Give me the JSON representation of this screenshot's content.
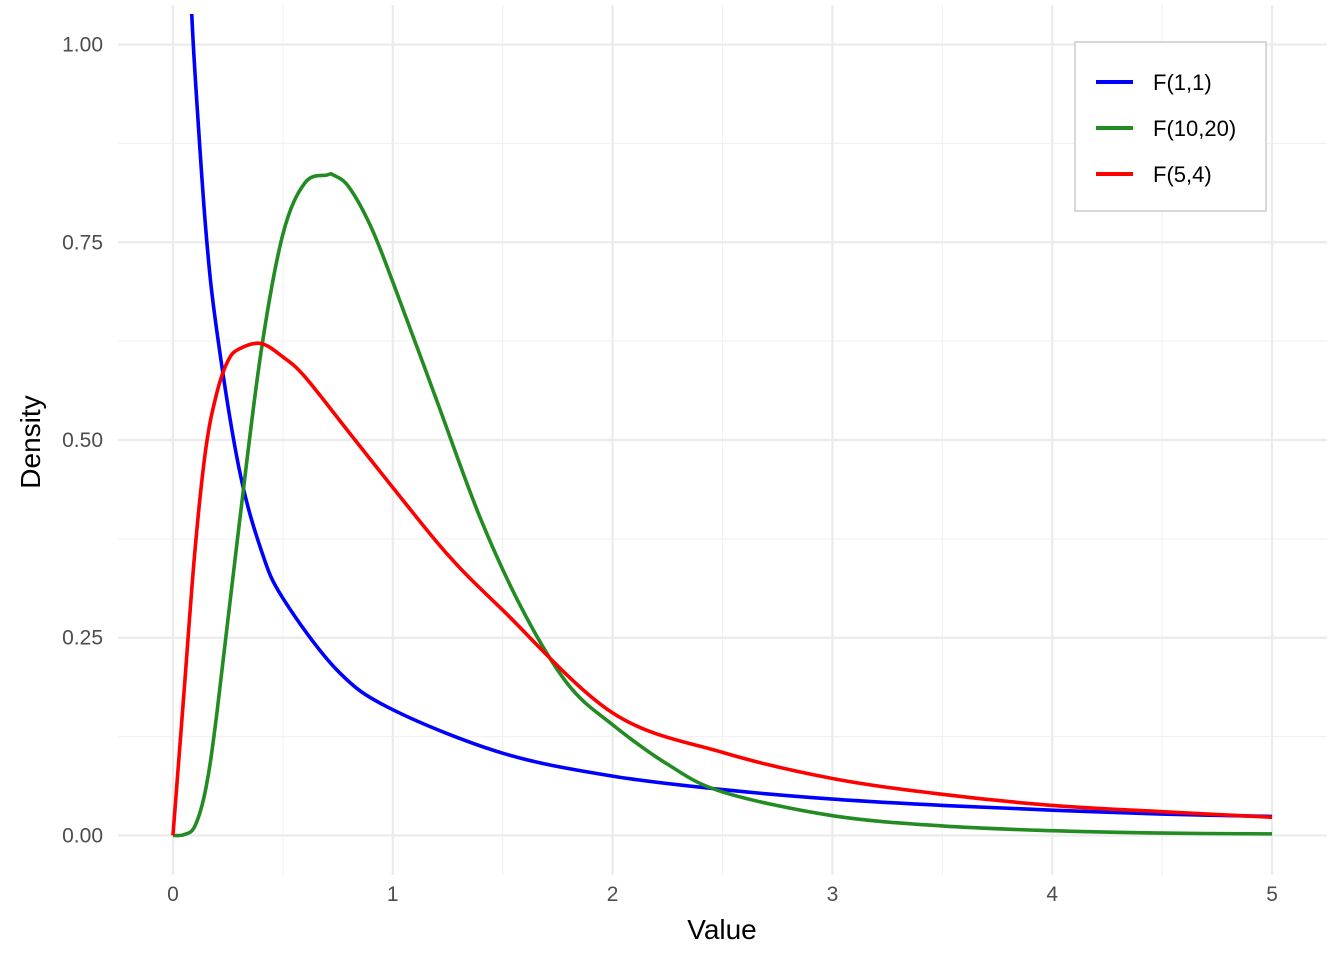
{
  "chart_data": {
    "type": "line",
    "title": "",
    "xlabel": "Value",
    "ylabel": "Density",
    "xlim": [
      -0.25,
      5.25
    ],
    "ylim": [
      -0.05,
      1.05
    ],
    "x_ticks": [
      0,
      1,
      2,
      3,
      4,
      5
    ],
    "x_tick_labels": [
      "0",
      "1",
      "2",
      "3",
      "4",
      "5"
    ],
    "y_ticks": [
      0,
      0.25,
      0.5,
      0.75,
      1.0
    ],
    "y_tick_labels": [
      "0.00",
      "0.25",
      "0.50",
      "0.75",
      "1.00"
    ],
    "grid": true,
    "legend_position": "top-right",
    "series": [
      {
        "name": "F(1,1)",
        "color": "#0000FF",
        "x": [
          0.08,
          0.1,
          0.15,
          0.2,
          0.3,
          0.4,
          0.5,
          0.75,
          1.0,
          1.5,
          2.0,
          2.5,
          3.0,
          3.5,
          4.0,
          4.5,
          5.0
        ],
        "y": [
          1.07,
          0.965,
          0.764,
          0.637,
          0.465,
          0.362,
          0.3,
          0.208,
          0.159,
          0.104,
          0.075,
          0.058,
          0.046,
          0.038,
          0.032,
          0.027,
          0.024
        ]
      },
      {
        "name": "F(10,20)",
        "color": "#228B22",
        "x": [
          0.0,
          0.05,
          0.1,
          0.15,
          0.2,
          0.3,
          0.4,
          0.5,
          0.6,
          0.7,
          0.73,
          0.8,
          0.9,
          1.0,
          1.2,
          1.4,
          1.6,
          1.8,
          2.0,
          2.25,
          2.5,
          3.0,
          3.5,
          4.0,
          4.5,
          5.0
        ],
        "y": [
          0.0,
          0.001,
          0.012,
          0.06,
          0.155,
          0.39,
          0.61,
          0.76,
          0.825,
          0.835,
          0.835,
          0.82,
          0.77,
          0.7,
          0.55,
          0.4,
          0.28,
          0.19,
          0.14,
          0.09,
          0.055,
          0.025,
          0.012,
          0.006,
          0.003,
          0.002
        ]
      },
      {
        "name": "F(5,4)",
        "color": "#FF0000",
        "x": [
          0.0,
          0.05,
          0.1,
          0.15,
          0.2,
          0.25,
          0.3,
          0.4,
          0.5,
          0.6,
          0.8,
          1.0,
          1.25,
          1.5,
          2.0,
          2.5,
          3.0,
          3.5,
          4.0,
          4.5,
          5.0
        ],
        "y": [
          0.0,
          0.18,
          0.36,
          0.49,
          0.56,
          0.6,
          0.615,
          0.622,
          0.605,
          0.58,
          0.51,
          0.44,
          0.355,
          0.285,
          0.155,
          0.105,
          0.072,
          0.052,
          0.038,
          0.03,
          0.023
        ]
      }
    ]
  }
}
